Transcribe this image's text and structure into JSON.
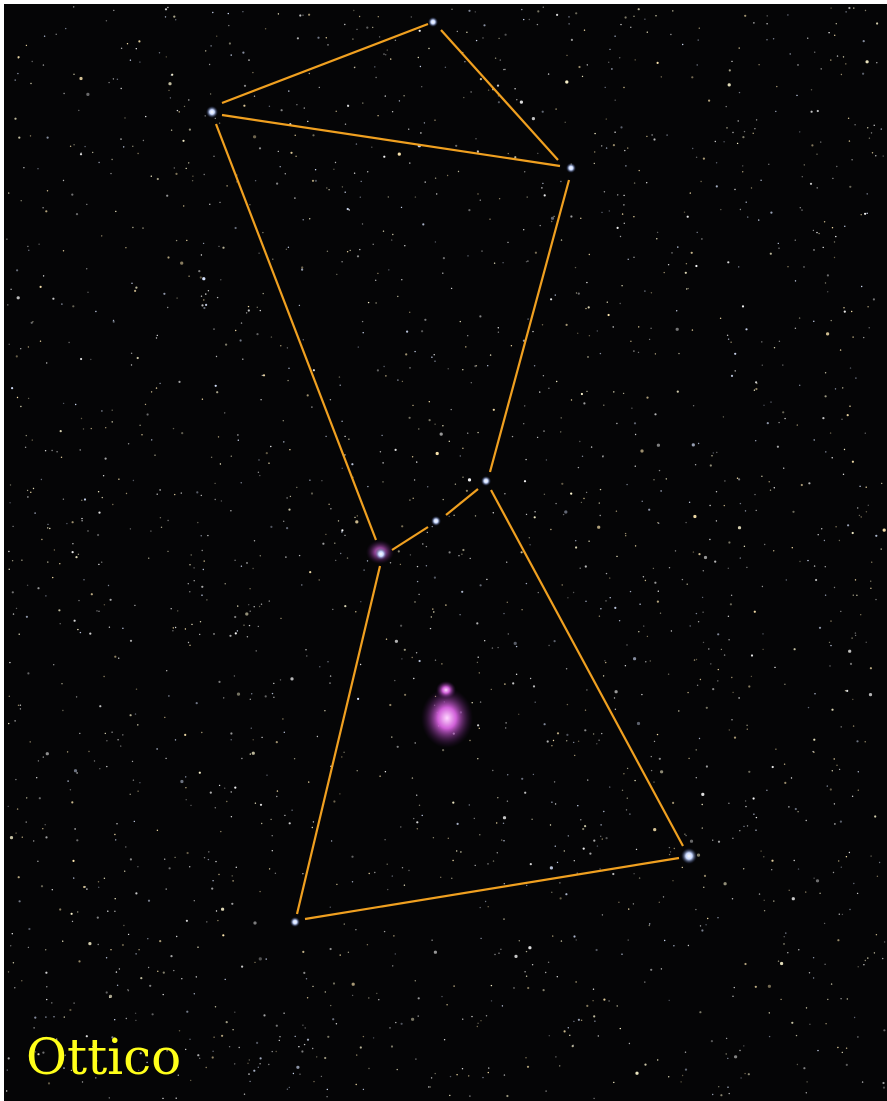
{
  "label": "Ottico"
}
